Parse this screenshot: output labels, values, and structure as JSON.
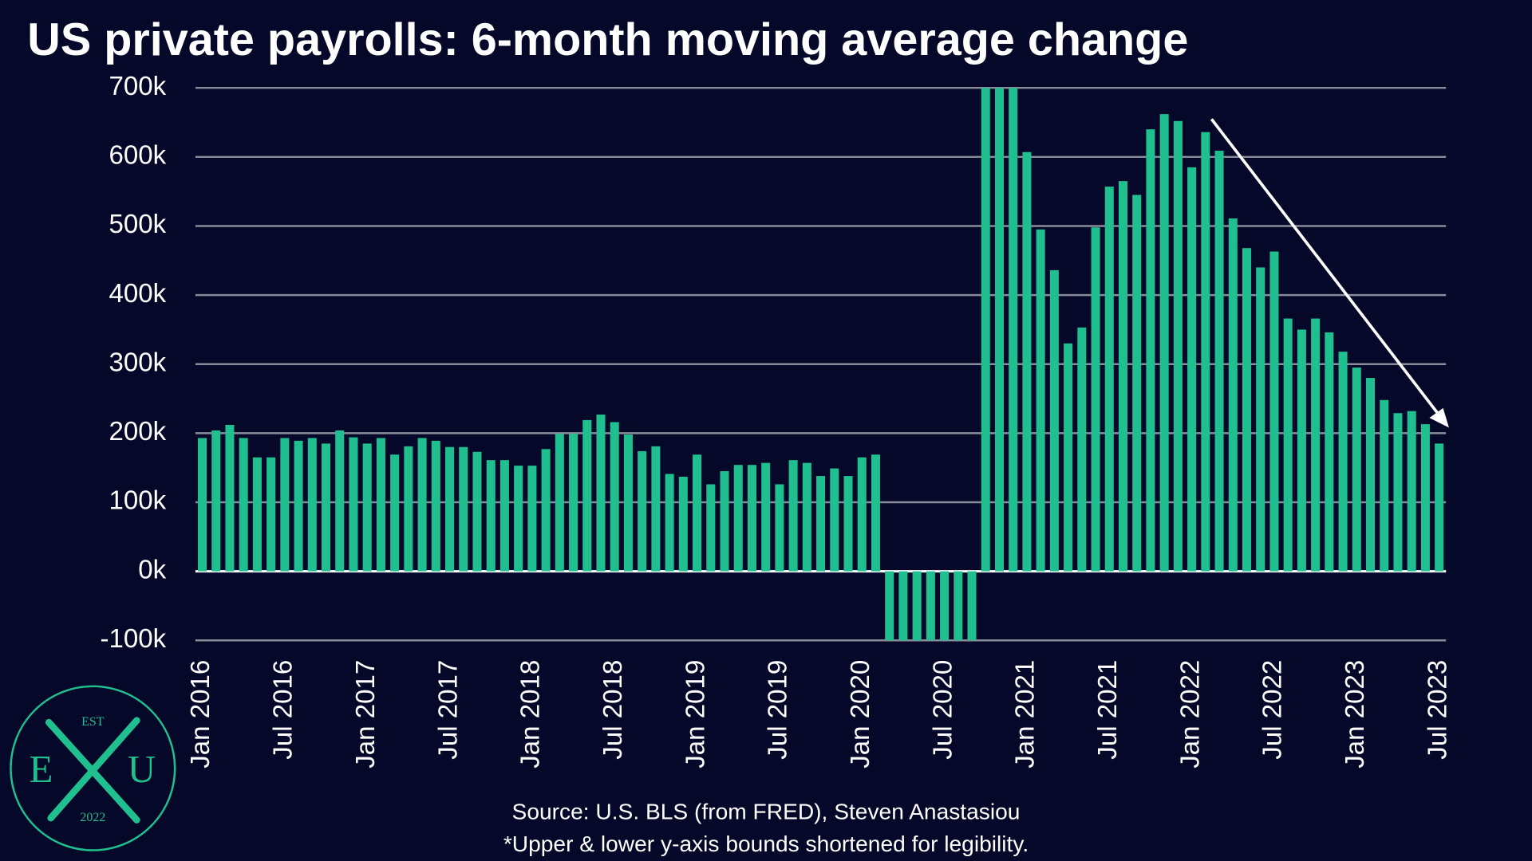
{
  "chart_data": {
    "type": "bar",
    "title": "US private payrolls: 6-month moving average change",
    "source": "Source: U.S. BLS (from FRED), Steven Anastasiou",
    "note": "*Upper & lower y-axis bounds shortened for legibility.",
    "color": "#1fbf8f",
    "categories": [
      "Jan 2016",
      null,
      null,
      null,
      null,
      null,
      "Jul 2016",
      null,
      null,
      null,
      null,
      null,
      "Jan 2017",
      null,
      null,
      null,
      null,
      null,
      "Jul 2017",
      null,
      null,
      null,
      null,
      null,
      "Jan 2018",
      null,
      null,
      null,
      null,
      null,
      "Jul 2018",
      null,
      null,
      null,
      null,
      null,
      "Jan 2019",
      null,
      null,
      null,
      null,
      null,
      "Jul 2019",
      null,
      null,
      null,
      null,
      null,
      "Jan 2020",
      null,
      null,
      null,
      null,
      null,
      "Jul 2020",
      null,
      null,
      null,
      null,
      null,
      "Jan 2021",
      null,
      null,
      null,
      null,
      null,
      "Jul 2021",
      null,
      null,
      null,
      null,
      null,
      "Jan 2022",
      null,
      null,
      null,
      null,
      null,
      "Jul 2022",
      null,
      null,
      null,
      null,
      null,
      "Jan 2023",
      null,
      null,
      null,
      null,
      null,
      "Jul 2023"
    ],
    "values": [
      193,
      204,
      212,
      193,
      165,
      165,
      193,
      189,
      193,
      185,
      204,
      194,
      185,
      193,
      169,
      181,
      193,
      189,
      180,
      180,
      173,
      161,
      161,
      153,
      153,
      177,
      199,
      199,
      219,
      227,
      216,
      198,
      174,
      181,
      141,
      137,
      169,
      126,
      145,
      154,
      154,
      157,
      126,
      161,
      157,
      138,
      149,
      138,
      165,
      169,
      -100,
      -100,
      -100,
      -100,
      -100,
      -100,
      -100,
      700,
      700,
      700,
      607,
      495,
      436,
      330,
      353,
      498,
      557,
      565,
      545,
      640,
      662,
      652,
      585,
      636,
      609,
      511,
      468,
      440,
      463,
      366,
      350,
      366,
      346,
      318,
      295,
      280,
      248,
      229,
      232,
      213,
      185
    ],
    "ylim": [
      -100,
      700
    ],
    "yticks": [
      {
        "value": -100,
        "label": "-100k"
      },
      {
        "value": 0,
        "label": "0k"
      },
      {
        "value": 100,
        "label": "100k"
      },
      {
        "value": 200,
        "label": "200k"
      },
      {
        "value": 300,
        "label": "300k"
      },
      {
        "value": 400,
        "label": "400k"
      },
      {
        "value": 500,
        "label": "500k"
      },
      {
        "value": 600,
        "label": "600k"
      },
      {
        "value": 700,
        "label": "700k"
      }
    ],
    "grid": true
  },
  "logo": {
    "top": "EST",
    "left": "E",
    "right": "U",
    "bottom": "2022"
  }
}
